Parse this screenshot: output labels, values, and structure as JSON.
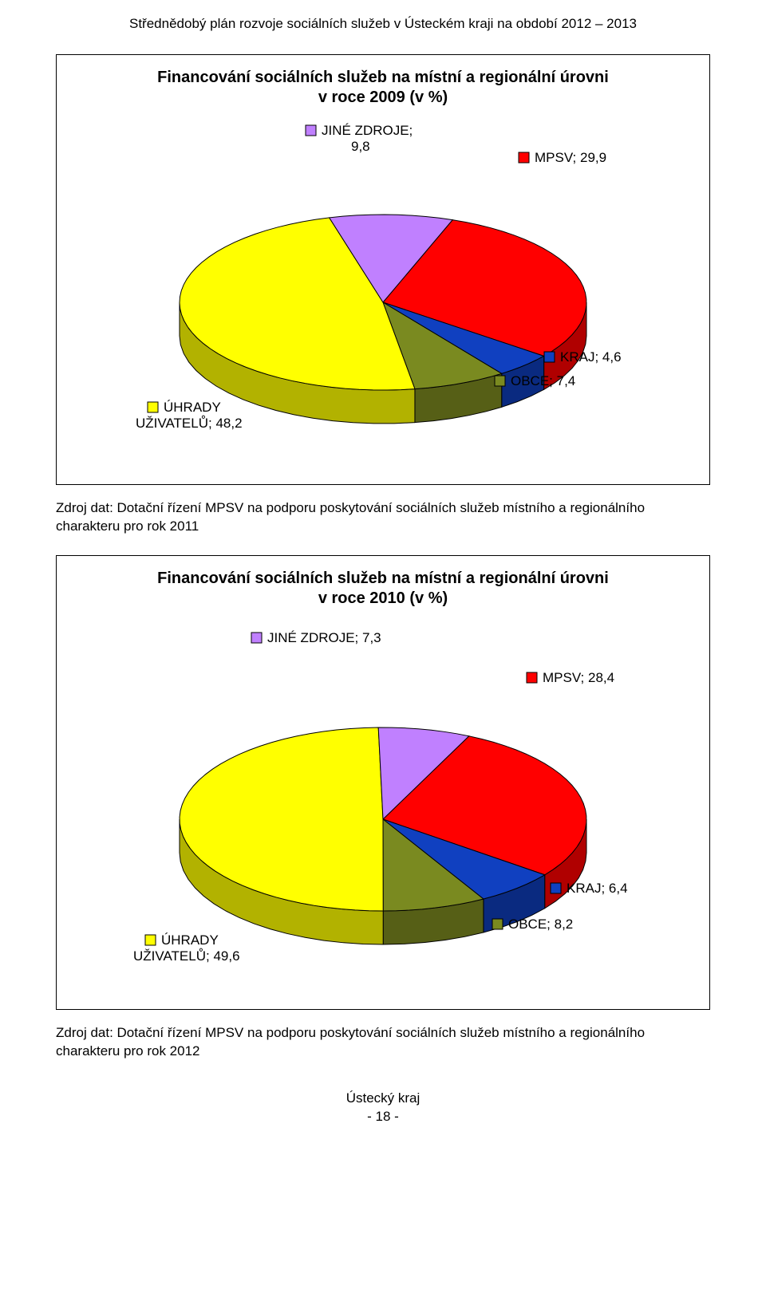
{
  "doc_header": "Střednědobý plán rozvoje sociálních služeb v Ústeckém kraji na období 2012 – 2013",
  "chart1": {
    "type": "pie3d",
    "title_l1": "Financování sociálních služeb na místní a regionální úrovni",
    "title_l2": "v roce 2009 (v %)",
    "label_jine": "JINÉ ZDROJE;",
    "label_jine_v": "9,8",
    "label_mpsv": "MPSV; 29,9",
    "label_kraj": "KRAJ; 4,6",
    "label_obce": "OBCE; 7,4",
    "label_uhr_l1": "ÚHRADY",
    "label_uhr_l2": "UŽIVATELŮ; 48,2",
    "seg_mpsv": {
      "value": 29.9,
      "top": "#ff0000",
      "side": "#b00000"
    },
    "seg_kraj": {
      "value": 4.6,
      "top": "#1040c0",
      "side": "#0a2a80"
    },
    "seg_obce": {
      "value": 7.4,
      "top": "#7a8a20",
      "side": "#565f16"
    },
    "seg_uhr": {
      "value": 48.2,
      "top": "#ffff00",
      "side": "#b2b200"
    },
    "seg_jine": {
      "value": 9.8,
      "top": "#c080ff",
      "side": "#8a59b2"
    },
    "outline": "#000000",
    "swatch_jine": "#c080ff",
    "swatch_mpsv": "#ff0000",
    "swatch_kraj": "#1040c0",
    "swatch_obce": "#7a8a20",
    "swatch_uhr": "#ffff00",
    "label_fontsize": 17,
    "title_fontsize": 20
  },
  "source1": "Zdroj dat: Dotační řízení MPSV na podporu poskytování sociálních služeb místního a regionálního charakteru pro rok 2011",
  "chart2": {
    "type": "pie3d",
    "title_l1": "Financování sociálních služeb na místní a regionální úrovni",
    "title_l2": "v roce 2010 (v %)",
    "label_jine": "JINÉ ZDROJE; 7,3",
    "label_mpsv": "MPSV; 28,4",
    "label_kraj": "KRAJ; 6,4",
    "label_obce": "OBCE; 8,2",
    "label_uhr_l1": "ÚHRADY",
    "label_uhr_l2": "UŽIVATELŮ; 49,6",
    "seg_mpsv": {
      "value": 28.4,
      "top": "#ff0000",
      "side": "#b00000"
    },
    "seg_kraj": {
      "value": 6.4,
      "top": "#1040c0",
      "side": "#0a2a80"
    },
    "seg_obce": {
      "value": 8.2,
      "top": "#7a8a20",
      "side": "#565f16"
    },
    "seg_uhr": {
      "value": 49.6,
      "top": "#ffff00",
      "side": "#b2b200"
    },
    "seg_jine": {
      "value": 7.3,
      "top": "#c080ff",
      "side": "#8a59b2"
    },
    "outline": "#000000",
    "swatch_jine": "#c080ff",
    "swatch_mpsv": "#ff0000",
    "swatch_kraj": "#1040c0",
    "swatch_obce": "#7a8a20",
    "swatch_uhr": "#ffff00",
    "label_fontsize": 17,
    "title_fontsize": 20
  },
  "source2": "Zdroj dat: Dotační řízení MPSV na podporu poskytování sociálních služeb místního a regionálního charakteru pro rok 2012",
  "footer_l1": "Ústecký kraj",
  "footer_l2": "- 18 -"
}
